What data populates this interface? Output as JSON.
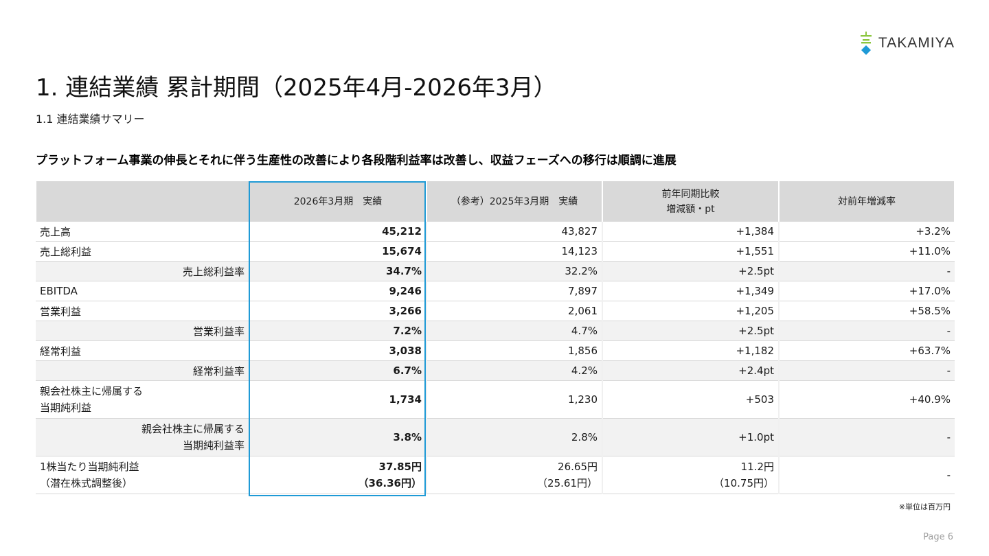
{
  "brand": {
    "name": "TAKAMIYA",
    "colors": {
      "accent_green": "#8cc63f",
      "accent_blue": "#1f9ad6"
    }
  },
  "title": "1. 連結業績 累計期間（2025年4月-2026年3月）",
  "subtitle": "1.1 連結業績サマリー",
  "headline": "プラットフォーム事業の伸長とそれに伴う生産性の改善により各段階利益率は改善し、収益フェーズへの移行は順調に進展",
  "table": {
    "headers": [
      "",
      "2026年3月期　実績",
      "（参考）2025年3月期　実績",
      "前年同期比較\n増減額・pt",
      "対前年増減率"
    ],
    "rows": [
      {
        "label": "売上高",
        "sub": false,
        "current": "45,212",
        "prior": "43,827",
        "change": "+1,384",
        "rate": "+3.2%"
      },
      {
        "label": "売上総利益",
        "sub": false,
        "current": "15,674",
        "prior": "14,123",
        "change": "+1,551",
        "rate": "+11.0%"
      },
      {
        "label": "売上総利益率",
        "sub": true,
        "current": "34.7%",
        "prior": "32.2%",
        "change": "+2.5pt",
        "rate": "-"
      },
      {
        "label": "EBITDA",
        "sub": false,
        "current": "9,246",
        "prior": "7,897",
        "change": "+1,349",
        "rate": "+17.0%"
      },
      {
        "label": "営業利益",
        "sub": false,
        "current": "3,266",
        "prior": "2,061",
        "change": "+1,205",
        "rate": "+58.5%"
      },
      {
        "label": "営業利益率",
        "sub": true,
        "current": "7.2%",
        "prior": "4.7%",
        "change": "+2.5pt",
        "rate": "-"
      },
      {
        "label": "経常利益",
        "sub": false,
        "current": "3,038",
        "prior": "1,856",
        "change": "+1,182",
        "rate": "+63.7%"
      },
      {
        "label": "経常利益率",
        "sub": true,
        "current": "6.7%",
        "prior": "4.2%",
        "change": "+2.4pt",
        "rate": "-"
      },
      {
        "label": "親会社株主に帰属する\n当期純利益",
        "sub": false,
        "tall": true,
        "current": "1,734",
        "prior": "1,230",
        "change": "+503",
        "rate": "+40.9%"
      },
      {
        "label": "親会社株主に帰属する\n当期純利益率",
        "sub": true,
        "tall": true,
        "current": "3.8%",
        "prior": "2.8%",
        "change": "+1.0pt",
        "rate": "-"
      },
      {
        "label": "1株当たり当期純利益\n（潜在株式調整後）",
        "sub": false,
        "tall": true,
        "current": "37.85円\n（36.36円）",
        "prior": "26.65円\n（25.61円）",
        "change": "11.2円\n（10.75円）",
        "rate": "-"
      }
    ]
  },
  "note": "※単位は百万円",
  "page": "Page 6"
}
